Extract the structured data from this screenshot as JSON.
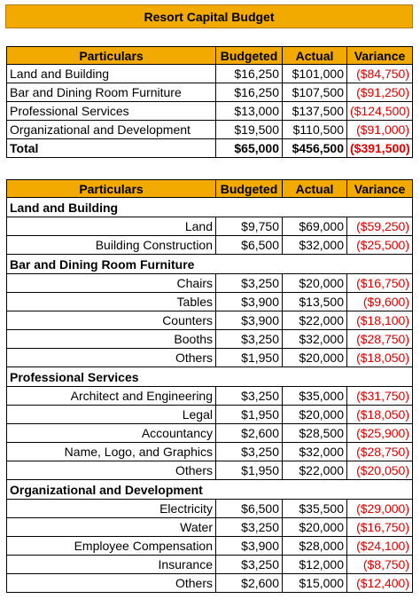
{
  "title": "Resort Capital Budget",
  "headers": {
    "particulars": "Particulars",
    "budgeted": "Budgeted",
    "actual": "Actual",
    "variance": "Variance"
  },
  "summary": [
    {
      "label": "Land and Building",
      "budgeted": "$16,250",
      "actual": "$101,000",
      "variance": "($84,750)"
    },
    {
      "label": "Bar and Dining Room Furniture",
      "budgeted": "$16,250",
      "actual": "$107,500",
      "variance": "($91,250)"
    },
    {
      "label": "Professional Services",
      "budgeted": "$13,000",
      "actual": "$137,500",
      "variance": "($124,500)"
    },
    {
      "label": "Organizational and Development",
      "budgeted": "$19,500",
      "actual": "$110,500",
      "variance": "($91,000)"
    }
  ],
  "total": {
    "label": "Total",
    "budgeted": "$65,000",
    "actual": "$456,500",
    "variance": "($391,500)"
  },
  "sections": [
    {
      "name": "Land and Building",
      "items": [
        {
          "label": "Land",
          "budgeted": "$9,750",
          "actual": "$69,000",
          "variance": "($59,250)"
        },
        {
          "label": "Building Construction",
          "budgeted": "$6,500",
          "actual": "$32,000",
          "variance": "($25,500)"
        }
      ]
    },
    {
      "name": "Bar and Dining Room Furniture",
      "items": [
        {
          "label": "Chairs",
          "budgeted": "$3,250",
          "actual": "$20,000",
          "variance": "($16,750)"
        },
        {
          "label": "Tables",
          "budgeted": "$3,900",
          "actual": "$13,500",
          "variance": "($9,600)"
        },
        {
          "label": "Counters",
          "budgeted": "$3,900",
          "actual": "$22,000",
          "variance": "($18,100)"
        },
        {
          "label": "Booths",
          "budgeted": "$3,250",
          "actual": "$32,000",
          "variance": "($28,750)"
        },
        {
          "label": "Others",
          "budgeted": "$1,950",
          "actual": "$20,000",
          "variance": "($18,050)"
        }
      ]
    },
    {
      "name": "Professional Services",
      "items": [
        {
          "label": "Architect and Engineering",
          "budgeted": "$3,250",
          "actual": "$35,000",
          "variance": "($31,750)"
        },
        {
          "label": "Legal",
          "budgeted": "$1,950",
          "actual": "$20,000",
          "variance": "($18,050)"
        },
        {
          "label": "Accountancy",
          "budgeted": "$2,600",
          "actual": "$28,500",
          "variance": "($25,900)"
        },
        {
          "label": "Name, Logo, and Graphics",
          "budgeted": "$3,250",
          "actual": "$32,000",
          "variance": "($28,750)"
        },
        {
          "label": "Others",
          "budgeted": "$1,950",
          "actual": "$22,000",
          "variance": "($20,050)"
        }
      ]
    },
    {
      "name": "Organizational and Development",
      "items": [
        {
          "label": "Electricity",
          "budgeted": "$6,500",
          "actual": "$35,500",
          "variance": "($29,000)"
        },
        {
          "label": "Water",
          "budgeted": "$3,250",
          "actual": "$20,000",
          "variance": "($16,750)"
        },
        {
          "label": "Employee Compensation",
          "budgeted": "$3,900",
          "actual": "$28,000",
          "variance": "($24,100)"
        },
        {
          "label": "Insurance",
          "budgeted": "$3,250",
          "actual": "$12,000",
          "variance": "($8,750)"
        },
        {
          "label": "Others",
          "budgeted": "$2,600",
          "actual": "$15,000",
          "variance": "($12,400)"
        }
      ]
    }
  ]
}
